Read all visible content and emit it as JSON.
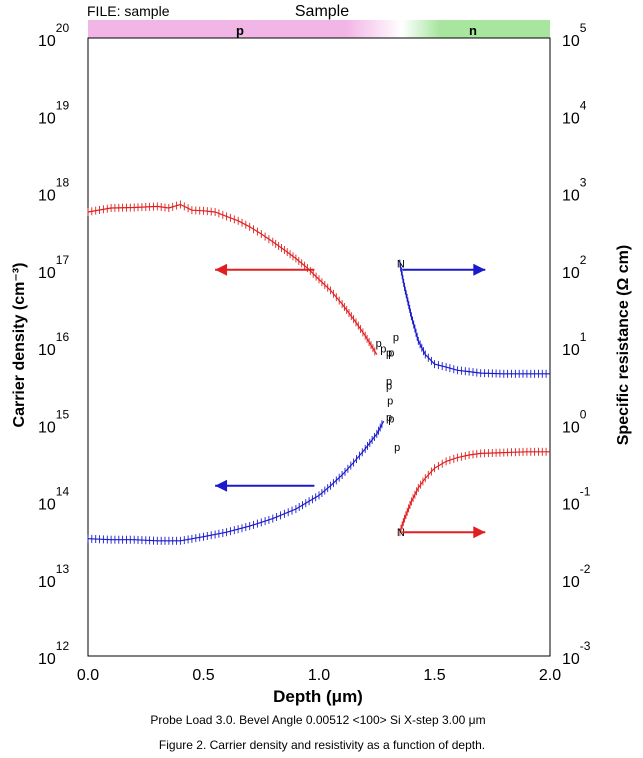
{
  "chart_data": {
    "type": "scatter",
    "file_label": "FILE: sample",
    "title": "Sample",
    "region_labels": [
      "p",
      "n"
    ],
    "region_colors": {
      "p": "#f2b6e6",
      "n": "#a8e6a0"
    },
    "xlabel": "Depth (μm)",
    "ylabel_left": "Carrier density (cm⁻³)",
    "ylabel_right": "Specific resistance (Ω cm)",
    "xlim": [
      0,
      2.0
    ],
    "x_ticks": [
      "0.0",
      "0.5",
      "1.0",
      "1.5",
      "2.0"
    ],
    "ylim_left_log10": [
      12,
      20
    ],
    "y_left_tick_exponents": [
      "20",
      "19",
      "18",
      "17",
      "16",
      "15",
      "14",
      "13",
      "12"
    ],
    "ylim_right_log10": [
      -3,
      5
    ],
    "y_right_tick_exponents": [
      "5",
      "4",
      "3",
      "2",
      "1",
      "0",
      "-1",
      "-2",
      "-3"
    ],
    "tick_base": "10",
    "caption_line1": "Probe Load 3.0. Bevel Angle 0.00512 <100> Si X-step 3.00 μm",
    "caption_line2": "Figure 2. Carrier density and resistivity as a function of depth.",
    "series": [
      {
        "color": "#e02020",
        "axis": "left",
        "marker": "p",
        "x": [
          0.0,
          0.1,
          0.2,
          0.3,
          0.35,
          0.4,
          0.45,
          0.5,
          0.55,
          0.6,
          0.65,
          0.7,
          0.75,
          0.8,
          0.85,
          0.9,
          0.95,
          1.0,
          1.05,
          1.1,
          1.15,
          1.2,
          1.25
        ],
        "y": [
          5.6e+17,
          6.3e+17,
          6.4e+17,
          6.6e+17,
          6.3e+17,
          7e+17,
          5.9e+17,
          5.8e+17,
          5.6e+17,
          4.9e+17,
          4.3e+17,
          3.6e+17,
          2.9e+17,
          2.3e+17,
          1.8e+17,
          1.4e+17,
          1.05e+17,
          7.5e+16,
          5.4e+16,
          3.6e+16,
          2.3e+16,
          1.4e+16,
          8000000000000000.0
        ]
      },
      {
        "color": "#1a1acc",
        "axis": "left",
        "marker": "p",
        "x": [
          0.0,
          0.1,
          0.2,
          0.3,
          0.4,
          0.5,
          0.6,
          0.7,
          0.8,
          0.9,
          1.0,
          1.05,
          1.1,
          1.15,
          1.2,
          1.25,
          1.28
        ],
        "y": [
          33000000000000.0,
          32000000000000.0,
          32000000000000.0,
          31000000000000.0,
          31000000000000.0,
          35000000000000.0,
          40000000000000.0,
          48000000000000.0,
          60000000000000.0,
          80000000000000.0,
          120000000000000.0,
          160000000000000.0,
          220000000000000.0,
          320000000000000.0,
          480000000000000.0,
          750000000000000.0,
          1100000000000000.0
        ]
      },
      {
        "color": "#1a1acc",
        "axis": "right",
        "marker": "N",
        "x": [
          1.35,
          1.37,
          1.4,
          1.43,
          1.46,
          1.5,
          1.55,
          1.6,
          1.65,
          1.7,
          1.8,
          1.9,
          2.0
        ],
        "y": [
          120,
          60,
          25,
          12,
          8,
          6,
          5.5,
          5,
          4.8,
          4.6,
          4.5,
          4.5,
          4.5
        ]
      },
      {
        "color": "#e02020",
        "axis": "right",
        "marker": "N",
        "x": [
          1.35,
          1.37,
          1.4,
          1.43,
          1.46,
          1.5,
          1.55,
          1.6,
          1.65,
          1.7,
          1.8,
          1.9,
          2.0
        ],
        "y": [
          0.04,
          0.06,
          0.1,
          0.15,
          0.2,
          0.27,
          0.33,
          0.37,
          0.4,
          0.42,
          0.43,
          0.44,
          0.44
        ]
      }
    ],
    "junction_markers": [
      {
        "label": "p",
        "color": "#e02020",
        "x": 1.245,
        "y": 1e+16
      },
      {
        "label": "p",
        "color": "#e02020",
        "x": 1.265,
        "y": 8500000000000000.0
      },
      {
        "label": "p",
        "color": "#e02020",
        "x": 1.29,
        "y": 7500000000000000.0
      },
      {
        "label": "p",
        "color": "#e02020",
        "x": 1.295,
        "y": 1800000000000000.0
      },
      {
        "label": "p",
        "color": "#e02020",
        "x": 1.3,
        "y": 1050000000000000.0
      },
      {
        "label": "p",
        "color": "#e02020",
        "x": 1.325,
        "y": 450000000000000.0
      },
      {
        "label": "p",
        "color": "#1a1acc",
        "x": 1.32,
        "y": 1.2e+16
      },
      {
        "label": "p",
        "color": "#1a1acc",
        "x": 1.3,
        "y": 7500000000000000.0
      },
      {
        "label": "p",
        "color": "#1a1acc",
        "x": 1.29,
        "y": 3200000000000000.0
      },
      {
        "label": "p",
        "color": "#1a1acc",
        "x": 1.29,
        "y": 2800000000000000.0
      },
      {
        "label": "p",
        "color": "#1a1acc",
        "x": 1.29,
        "y": 1100000000000000.0
      }
    ],
    "arrows": [
      {
        "color": "#e02020",
        "direction": "left",
        "x_from": 0.98,
        "x_to": 0.55,
        "axis": "left",
        "y": 1e+17
      },
      {
        "color": "#1a1acc",
        "direction": "right",
        "x_from": 1.36,
        "x_to": 1.72,
        "axis": "right",
        "y": 100
      },
      {
        "color": "#1a1acc",
        "direction": "left",
        "x_from": 0.98,
        "x_to": 0.55,
        "axis": "left",
        "y": 160000000000000.0
      },
      {
        "color": "#e02020",
        "direction": "right",
        "x_from": 1.36,
        "x_to": 1.72,
        "axis": "right",
        "y": 0.04
      }
    ]
  }
}
